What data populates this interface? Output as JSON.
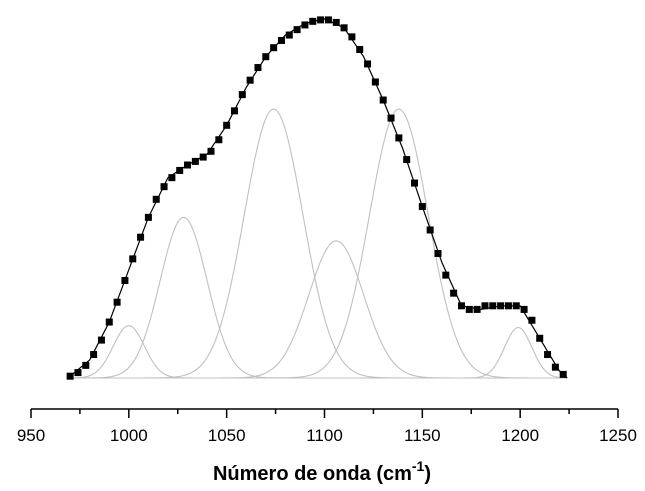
{
  "chart_data": {
    "type": "line",
    "title": "",
    "xlabel": "Número de onda (cm",
    "xlabel_superscript": "-1",
    "xlabel_suffix": ")",
    "ylabel": "",
    "xlim": [
      950,
      1250
    ],
    "ylim": [
      0,
      1
    ],
    "x_ticks": [
      950,
      1000,
      1050,
      1100,
      1150,
      1200,
      1250
    ],
    "grid": false,
    "legend": "none",
    "colors": {
      "data": "#000000",
      "fit": "#000000",
      "peaks": "#c0c0c0",
      "axis": "#000000"
    },
    "series": [
      {
        "kind": "measured-markers",
        "marker": "square",
        "x": [
          970,
          974,
          978,
          982,
          986,
          990,
          994,
          998,
          1002,
          1006,
          1010,
          1014,
          1018,
          1022,
          1026,
          1030,
          1034,
          1038,
          1042,
          1046,
          1050,
          1054,
          1058,
          1062,
          1066,
          1070,
          1074,
          1078,
          1082,
          1086,
          1090,
          1094,
          1098,
          1102,
          1106,
          1110,
          1114,
          1118,
          1122,
          1126,
          1130,
          1134,
          1138,
          1142,
          1146,
          1150,
          1154,
          1158,
          1162,
          1166,
          1170,
          1174,
          1178,
          1182,
          1186,
          1190,
          1194,
          1198,
          1202,
          1206,
          1210,
          1214,
          1218,
          1222
        ],
        "y": [
          0.005,
          0.015,
          0.035,
          0.065,
          0.105,
          0.155,
          0.21,
          0.27,
          0.33,
          0.39,
          0.445,
          0.495,
          0.53,
          0.555,
          0.575,
          0.59,
          0.6,
          0.612,
          0.628,
          0.66,
          0.7,
          0.74,
          0.785,
          0.825,
          0.86,
          0.89,
          0.915,
          0.935,
          0.95,
          0.965,
          0.978,
          0.988,
          0.992,
          0.992,
          0.985,
          0.97,
          0.945,
          0.91,
          0.87,
          0.82,
          0.77,
          0.72,
          0.665,
          0.605,
          0.54,
          0.475,
          0.41,
          0.345,
          0.285,
          0.235,
          0.2,
          0.19,
          0.19,
          0.2,
          0.2,
          0.2,
          0.2,
          0.2,
          0.19,
          0.16,
          0.11,
          0.065,
          0.03,
          0.01
        ]
      },
      {
        "kind": "fit-line",
        "x": [
          970,
          980,
          990,
          1000,
          1010,
          1020,
          1030,
          1040,
          1050,
          1060,
          1070,
          1080,
          1090,
          1100,
          1110,
          1120,
          1130,
          1140,
          1150,
          1160,
          1170,
          1180,
          1190,
          1200,
          1210,
          1220,
          1224
        ],
        "y": [
          0.005,
          0.05,
          0.155,
          0.3,
          0.445,
          0.555,
          0.59,
          0.62,
          0.7,
          0.805,
          0.89,
          0.95,
          0.982,
          0.995,
          0.97,
          0.89,
          0.77,
          0.635,
          0.475,
          0.32,
          0.2,
          0.19,
          0.2,
          0.2,
          0.11,
          0.02,
          0.0
        ]
      },
      {
        "kind": "peak",
        "center": 1000,
        "height": 0.145,
        "sigma": 8
      },
      {
        "kind": "peak",
        "center": 1028,
        "height": 0.445,
        "sigma": 12
      },
      {
        "kind": "peak",
        "center": 1074,
        "height": 0.745,
        "sigma": 15
      },
      {
        "kind": "peak",
        "center": 1106,
        "height": 0.38,
        "sigma": 14
      },
      {
        "kind": "peak",
        "center": 1138,
        "height": 0.745,
        "sigma": 15
      },
      {
        "kind": "peak",
        "center": 1199,
        "height": 0.14,
        "sigma": 7
      }
    ]
  }
}
